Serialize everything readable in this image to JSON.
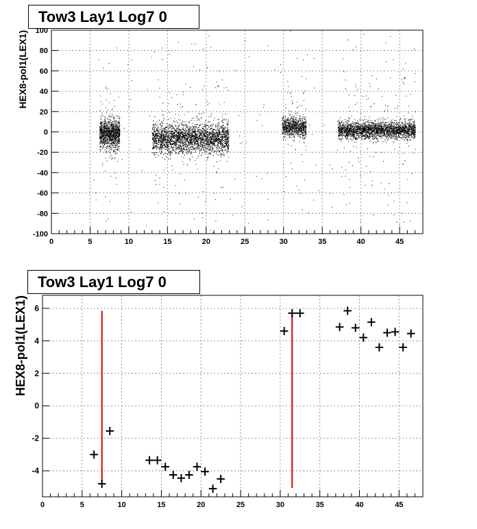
{
  "chart_data": [
    {
      "type": "scatter",
      "title": "Tow3 Lay1 Log7 0",
      "xlabel": "",
      "ylabel": "HEX8-pol1(LEX1)",
      "xlim": [
        0,
        48
      ],
      "ylim": [
        -100,
        100
      ],
      "grid": true,
      "xticks": [
        0,
        5,
        10,
        15,
        20,
        25,
        30,
        35,
        40,
        45
      ],
      "xtick_labels": [
        "0",
        "5",
        "10",
        "15",
        "20",
        "25",
        "30",
        "35",
        "40",
        "45"
      ],
      "yticks": [
        -100,
        -80,
        -60,
        -40,
        -20,
        0,
        20,
        40,
        60,
        80,
        100
      ],
      "ytick_labels": [
        "-100",
        "-80",
        "-60",
        "-40",
        "-20",
        "0",
        "20",
        "40",
        "60",
        "80",
        "100"
      ],
      "point_color": "#000000",
      "clusters": [
        {
          "x_range": [
            6.2,
            8.8
          ],
          "center": -2,
          "spread": 12,
          "count": 1300
        },
        {
          "x_range": [
            13.0,
            22.9
          ],
          "center": -6,
          "spread": 12,
          "count": 3600
        },
        {
          "x_range": [
            29.8,
            32.9
          ],
          "center": 5,
          "spread": 8,
          "count": 900
        },
        {
          "x_range": [
            37.0,
            47.0
          ],
          "center": 2,
          "spread": 7,
          "count": 2900
        }
      ]
    },
    {
      "type": "scatter",
      "title": "Tow3 Lay1 Log7 0",
      "xlabel": "",
      "ylabel": "HEX8-pol1(LEX1)",
      "xlim": [
        0,
        48
      ],
      "ylim": [
        -5.6,
        6.8
      ],
      "grid": true,
      "xticks": [
        0,
        5,
        10,
        15,
        20,
        25,
        30,
        35,
        40,
        45
      ],
      "xtick_labels": [
        "0",
        "5",
        "10",
        "15",
        "20",
        "25",
        "30",
        "35",
        "40",
        "45"
      ],
      "yticks": [
        -4,
        -2,
        0,
        2,
        4,
        6
      ],
      "ytick_labels": [
        "-4",
        "-2",
        "0",
        "2",
        "4",
        "6"
      ],
      "marker_color": "#000000",
      "highlight_color": "#e00000",
      "points": [
        {
          "x": 6.5,
          "y": -3.0
        },
        {
          "x": 7.5,
          "y": -4.8
        },
        {
          "x": 8.5,
          "y": -1.55
        },
        {
          "x": 13.5,
          "y": -3.35
        },
        {
          "x": 14.5,
          "y": -3.35
        },
        {
          "x": 15.5,
          "y": -3.75
        },
        {
          "x": 16.5,
          "y": -4.25
        },
        {
          "x": 17.5,
          "y": -4.45
        },
        {
          "x": 18.5,
          "y": -4.25
        },
        {
          "x": 19.5,
          "y": -3.75
        },
        {
          "x": 20.5,
          "y": -4.05
        },
        {
          "x": 21.5,
          "y": -5.1
        },
        {
          "x": 22.5,
          "y": -4.5
        },
        {
          "x": 30.5,
          "y": 4.6
        },
        {
          "x": 31.5,
          "y": 5.7
        },
        {
          "x": 32.5,
          "y": 5.7
        },
        {
          "x": 37.5,
          "y": 4.85
        },
        {
          "x": 38.5,
          "y": 5.85
        },
        {
          "x": 39.5,
          "y": 4.8
        },
        {
          "x": 40.5,
          "y": 4.2
        },
        {
          "x": 41.5,
          "y": 5.15
        },
        {
          "x": 42.5,
          "y": 3.6
        },
        {
          "x": 43.5,
          "y": 4.5
        },
        {
          "x": 44.5,
          "y": 4.55
        },
        {
          "x": 45.5,
          "y": 3.6
        },
        {
          "x": 46.5,
          "y": 4.45
        }
      ],
      "highlights": [
        {
          "x": 7.5,
          "y_low": -4.8,
          "y_high": 5.85
        },
        {
          "x": 31.5,
          "y_low": -5.05,
          "y_high": 5.7
        }
      ]
    }
  ]
}
